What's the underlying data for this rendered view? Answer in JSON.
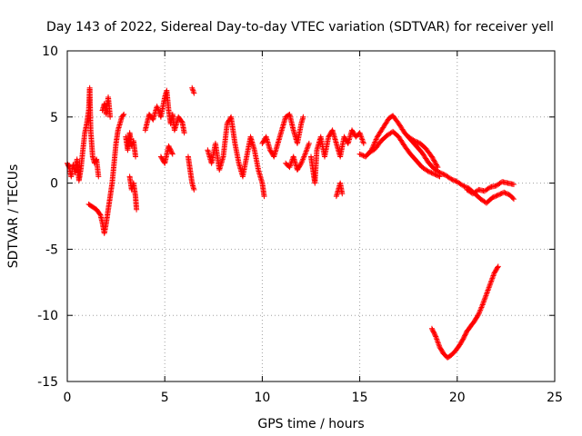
{
  "chart_data": {
    "type": "scatter",
    "title": "Day 143 of 2022, Sidereal Day-to-day VTEC variation (SDTVAR) for receiver yell",
    "xlabel": "GPS time / hours",
    "ylabel": "SDTVAR / TECUs",
    "xlim": [
      0,
      25
    ],
    "ylim": [
      -15,
      10
    ],
    "xticks": [
      "0",
      "5",
      "10",
      "15",
      "20",
      "25"
    ],
    "yticks": [
      "-15",
      "-10",
      "-5",
      "0",
      "5",
      "10"
    ],
    "grid": true,
    "marker": "+",
    "series": [
      {
        "name": "SDTVAR",
        "color": "#ff0000",
        "segments": [
          [
            [
              0.0,
              1.5
            ],
            [
              0.1,
              1.2
            ],
            [
              0.2,
              0.5
            ],
            [
              0.3,
              1.4
            ],
            [
              0.4,
              0.8
            ],
            [
              0.5,
              1.8
            ],
            [
              0.6,
              0.2
            ],
            [
              0.7,
              1.1
            ],
            [
              0.8,
              2.5
            ],
            [
              0.9,
              3.8
            ],
            [
              1.0,
              4.5
            ],
            [
              1.1,
              5.5
            ],
            [
              1.15,
              7.2
            ],
            [
              1.2,
              4.0
            ],
            [
              1.3,
              2.0
            ],
            [
              1.4,
              1.5
            ],
            [
              1.5,
              1.8
            ],
            [
              1.6,
              0.5
            ]
          ],
          [
            [
              1.1,
              -1.6
            ],
            [
              1.3,
              -1.8
            ],
            [
              1.5,
              -2.0
            ],
            [
              1.7,
              -2.4
            ],
            [
              1.8,
              -3.0
            ],
            [
              1.9,
              -3.8
            ],
            [
              2.0,
              -3.0
            ],
            [
              2.1,
              -2.0
            ],
            [
              2.2,
              -1.0
            ],
            [
              2.3,
              0.0
            ],
            [
              2.4,
              1.5
            ],
            [
              2.5,
              3.0
            ],
            [
              2.6,
              4.0
            ],
            [
              2.7,
              4.5
            ],
            [
              2.8,
              5.0
            ],
            [
              2.9,
              5.2
            ]
          ],
          [
            [
              1.8,
              5.5
            ],
            [
              1.9,
              6.0
            ],
            [
              2.0,
              5.2
            ],
            [
              2.1,
              6.5
            ],
            [
              2.2,
              5.0
            ]
          ],
          [
            [
              3.0,
              3.5
            ],
            [
              3.1,
              2.5
            ],
            [
              3.2,
              3.8
            ],
            [
              3.3,
              2.8
            ],
            [
              3.4,
              3.2
            ],
            [
              3.5,
              2.0
            ]
          ],
          [
            [
              3.2,
              0.5
            ],
            [
              3.3,
              -0.5
            ],
            [
              3.4,
              0.0
            ],
            [
              3.5,
              -1.0
            ],
            [
              3.55,
              -2.0
            ]
          ],
          [
            [
              4.0,
              4.0
            ],
            [
              4.2,
              5.2
            ],
            [
              4.4,
              4.8
            ],
            [
              4.6,
              5.8
            ],
            [
              4.8,
              5.0
            ],
            [
              5.0,
              6.5
            ],
            [
              5.1,
              7.0
            ],
            [
              5.2,
              5.5
            ],
            [
              5.3,
              4.5
            ],
            [
              5.4,
              5.2
            ],
            [
              5.5,
              4.0
            ],
            [
              5.7,
              5.0
            ],
            [
              5.9,
              4.6
            ],
            [
              6.0,
              3.8
            ]
          ],
          [
            [
              4.8,
              2.0
            ],
            [
              5.0,
              1.5
            ],
            [
              5.2,
              2.8
            ],
            [
              5.4,
              2.2
            ]
          ],
          [
            [
              6.4,
              7.2
            ],
            [
              6.5,
              6.8
            ]
          ],
          [
            [
              6.2,
              2.0
            ],
            [
              6.3,
              1.0
            ],
            [
              6.4,
              0.0
            ],
            [
              6.5,
              -0.5
            ]
          ],
          [
            [
              7.2,
              2.5
            ],
            [
              7.4,
              1.5
            ],
            [
              7.6,
              3.0
            ],
            [
              7.8,
              1.0
            ],
            [
              8.0,
              2.0
            ],
            [
              8.2,
              4.5
            ],
            [
              8.4,
              5.0
            ],
            [
              8.6,
              3.0
            ],
            [
              8.8,
              1.5
            ],
            [
              9.0,
              0.5
            ],
            [
              9.2,
              2.0
            ],
            [
              9.4,
              3.5
            ],
            [
              9.6,
              2.5
            ],
            [
              9.8,
              1.0
            ],
            [
              10.0,
              0.0
            ],
            [
              10.1,
              -1.0
            ]
          ],
          [
            [
              10.0,
              3.0
            ],
            [
              10.2,
              3.5
            ],
            [
              10.4,
              2.5
            ],
            [
              10.6,
              2.0
            ],
            [
              10.8,
              3.0
            ],
            [
              11.0,
              4.0
            ],
            [
              11.2,
              5.0
            ],
            [
              11.4,
              5.2
            ],
            [
              11.6,
              4.0
            ],
            [
              11.8,
              3.0
            ],
            [
              12.0,
              4.5
            ],
            [
              12.1,
              5.0
            ]
          ],
          [
            [
              11.2,
              1.5
            ],
            [
              11.4,
              1.2
            ],
            [
              11.6,
              2.0
            ],
            [
              11.8,
              1.0
            ],
            [
              12.0,
              1.5
            ],
            [
              12.2,
              2.2
            ],
            [
              12.4,
              3.0
            ]
          ],
          [
            [
              12.5,
              2.0
            ],
            [
              12.6,
              1.0
            ],
            [
              12.7,
              0.0
            ],
            [
              12.8,
              2.5
            ],
            [
              13.0,
              3.5
            ],
            [
              13.2,
              2.0
            ],
            [
              13.4,
              3.5
            ],
            [
              13.6,
              4.0
            ],
            [
              13.8,
              3.0
            ],
            [
              14.0,
              2.0
            ],
            [
              14.2,
              3.5
            ],
            [
              14.4,
              3.0
            ],
            [
              14.6,
              4.0
            ],
            [
              14.8,
              3.5
            ],
            [
              15.0,
              3.8
            ],
            [
              15.2,
              3.0
            ]
          ],
          [
            [
              13.8,
              -1.0
            ],
            [
              13.9,
              -0.5
            ],
            [
              14.0,
              0.0
            ],
            [
              14.1,
              -0.8
            ]
          ],
          [
            [
              15.0,
              2.2
            ],
            [
              15.3,
              2.0
            ],
            [
              15.6,
              2.5
            ],
            [
              15.9,
              3.5
            ],
            [
              16.2,
              4.2
            ],
            [
              16.5,
              4.9
            ],
            [
              16.7,
              5.1
            ],
            [
              17.0,
              4.5
            ],
            [
              17.3,
              3.8
            ],
            [
              17.6,
              3.3
            ],
            [
              17.9,
              2.8
            ],
            [
              18.2,
              2.3
            ],
            [
              18.5,
              1.6
            ],
            [
              18.8,
              1.1
            ],
            [
              19.1,
              0.8
            ],
            [
              19.4,
              0.6
            ],
            [
              19.7,
              0.3
            ],
            [
              20.0,
              0.1
            ],
            [
              20.3,
              -0.2
            ],
            [
              20.6,
              -0.4
            ],
            [
              20.9,
              -0.8
            ],
            [
              21.2,
              -1.2
            ],
            [
              21.5,
              -1.5
            ],
            [
              21.8,
              -1.1
            ],
            [
              22.1,
              -0.9
            ],
            [
              22.4,
              -0.7
            ],
            [
              22.7,
              -0.9
            ],
            [
              22.9,
              -1.2
            ]
          ],
          [
            [
              15.5,
              2.3
            ],
            [
              15.8,
              2.6
            ],
            [
              16.1,
              3.2
            ],
            [
              16.4,
              3.6
            ],
            [
              16.7,
              3.9
            ],
            [
              17.0,
              3.5
            ],
            [
              17.3,
              2.8
            ],
            [
              17.6,
              2.2
            ],
            [
              17.9,
              1.7
            ],
            [
              18.2,
              1.2
            ],
            [
              18.5,
              0.9
            ],
            [
              18.8,
              0.7
            ],
            [
              19.1,
              0.5
            ]
          ],
          [
            [
              17.5,
              3.5
            ],
            [
              17.8,
              3.2
            ],
            [
              18.1,
              3.0
            ],
            [
              18.4,
              2.6
            ],
            [
              18.7,
              2.0
            ],
            [
              19.0,
              1.2
            ]
          ],
          [
            [
              20.5,
              -0.5
            ],
            [
              20.8,
              -0.8
            ],
            [
              21.1,
              -0.5
            ],
            [
              21.4,
              -0.6
            ],
            [
              21.7,
              -0.3
            ],
            [
              22.0,
              -0.2
            ],
            [
              22.3,
              0.1
            ],
            [
              22.6,
              0.0
            ],
            [
              22.9,
              -0.1
            ]
          ],
          [
            [
              18.7,
              -11.0
            ],
            [
              18.9,
              -11.6
            ],
            [
              19.1,
              -12.4
            ],
            [
              19.3,
              -12.9
            ],
            [
              19.5,
              -13.2
            ],
            [
              19.7,
              -13.0
            ],
            [
              19.9,
              -12.7
            ],
            [
              20.1,
              -12.3
            ],
            [
              20.3,
              -11.8
            ],
            [
              20.5,
              -11.2
            ],
            [
              20.7,
              -10.8
            ],
            [
              20.9,
              -10.4
            ],
            [
              21.1,
              -9.9
            ],
            [
              21.3,
              -9.2
            ],
            [
              21.5,
              -8.4
            ],
            [
              21.7,
              -7.6
            ],
            [
              21.9,
              -6.8
            ],
            [
              22.1,
              -6.3
            ]
          ]
        ]
      }
    ]
  }
}
